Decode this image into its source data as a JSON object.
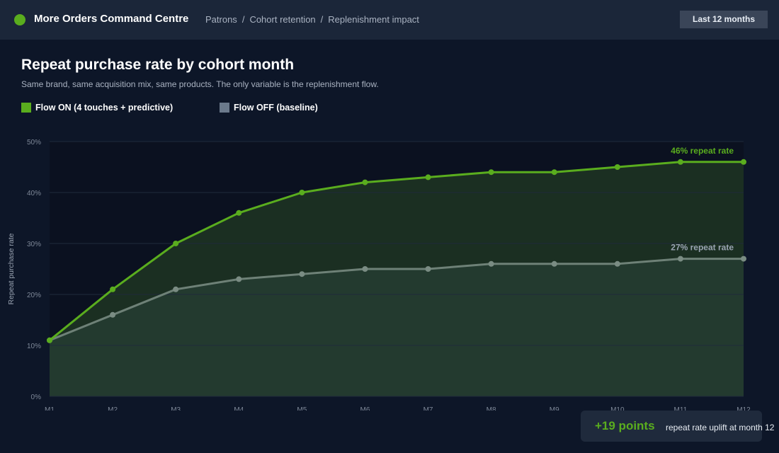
{
  "header": {
    "app_title": "More Orders Command Centre",
    "breadcrumb": [
      "Patrons",
      "Cohort retention",
      "Replenishment impact"
    ],
    "range_label": "Last 12 months"
  },
  "colors": {
    "accent": "#5aad1e",
    "baseline": "#6b7a8c",
    "background": "#0d1628"
  },
  "callout": {
    "value": "+19 points",
    "text": "repeat rate uplift at month 12"
  },
  "chart_data": {
    "type": "line",
    "title": "Repeat purchase rate by cohort month",
    "subtitle": "Same brand, same acquisition mix, same products. The only variable is the replenishment flow.",
    "xlabel": "",
    "ylabel": "Repeat purchase rate",
    "categories": [
      "M1",
      "M2",
      "M3",
      "M4",
      "M5",
      "M6",
      "M7",
      "M8",
      "M9",
      "M10",
      "M11",
      "M12"
    ],
    "ylim": [
      0,
      50
    ],
    "yticks": [
      "0%",
      "10%",
      "20%",
      "30%",
      "40%",
      "50%"
    ],
    "grid": true,
    "legend_position": "top-left",
    "series": [
      {
        "name": "Flow ON (4 touches + predictive)",
        "color": "#5aad1e",
        "values": [
          11,
          21,
          30,
          36,
          40,
          42,
          43,
          44,
          44,
          45,
          46,
          46
        ],
        "end_label": "46% repeat rate"
      },
      {
        "name": "Flow OFF (baseline)",
        "color": "#6b7a8c",
        "values": [
          11,
          16,
          21,
          23,
          24,
          25,
          25,
          26,
          26,
          26,
          27,
          27
        ],
        "end_label": "27% repeat rate"
      }
    ]
  }
}
